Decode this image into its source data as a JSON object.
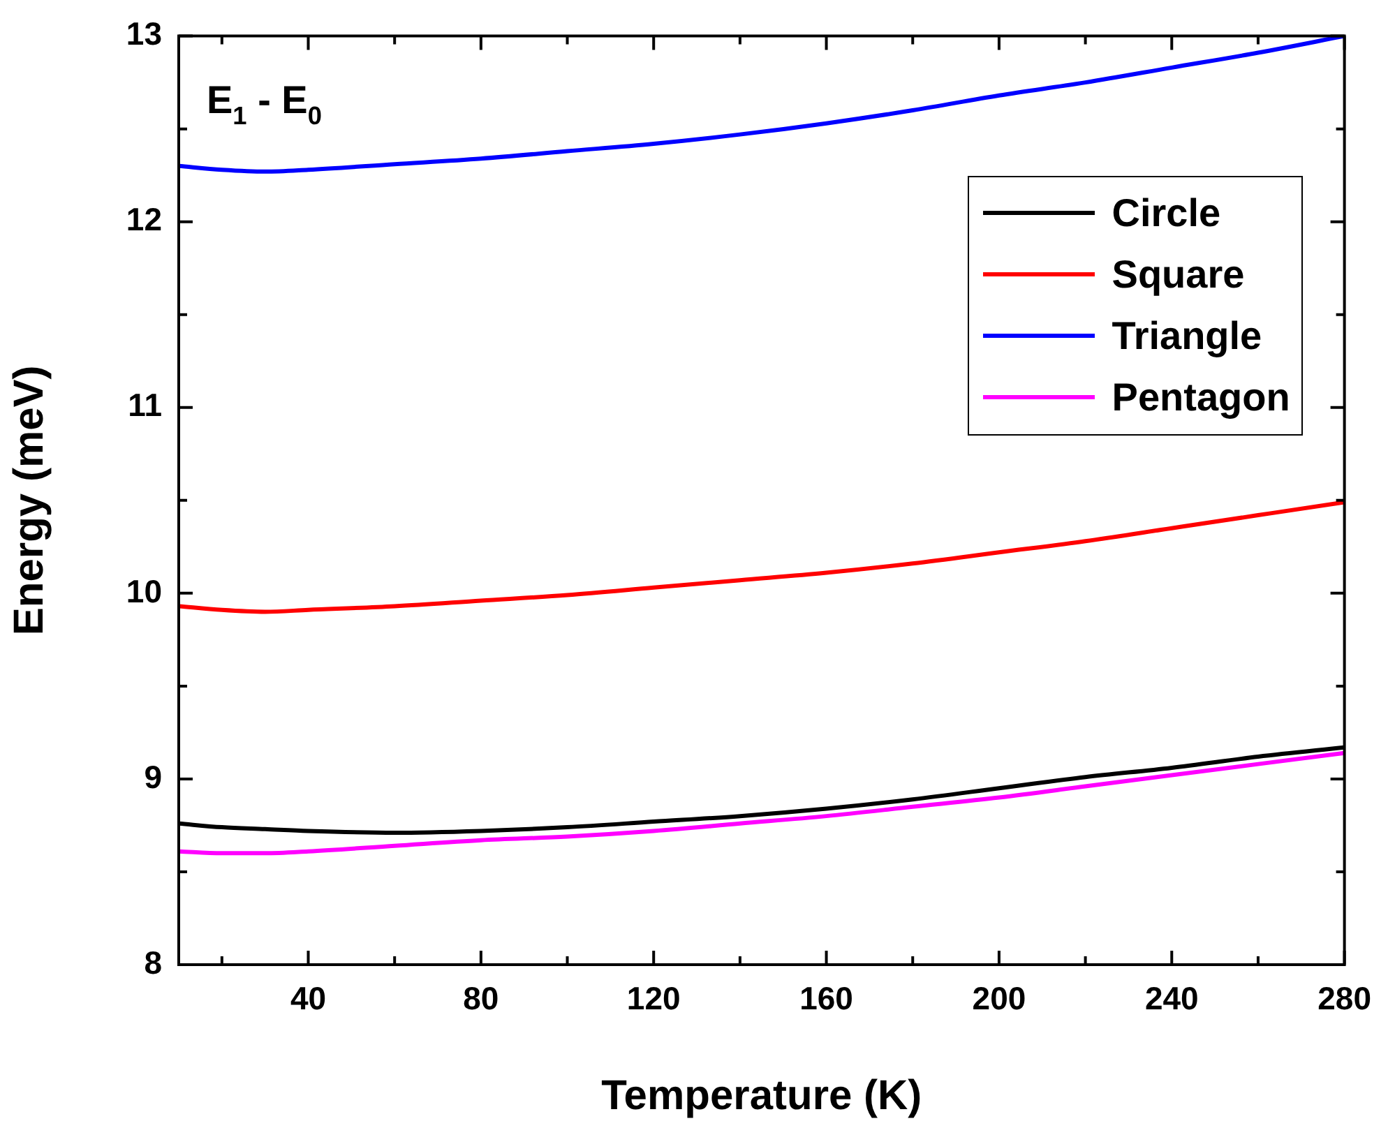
{
  "chart_data": {
    "type": "line",
    "xlabel": "Temperature (K)",
    "ylabel": "Energy (meV)",
    "annotations": [
      "E$_{1}$ - E$_{0}$"
    ],
    "x": [
      10,
      20,
      30,
      40,
      60,
      80,
      100,
      120,
      140,
      160,
      180,
      200,
      220,
      240,
      260,
      280
    ],
    "series": [
      {
        "name": "Circle",
        "color": "#000000",
        "values": [
          8.76,
          8.74,
          8.73,
          8.72,
          8.71,
          8.72,
          8.74,
          8.77,
          8.8,
          8.84,
          8.89,
          8.95,
          9.01,
          9.06,
          9.12,
          9.17
        ]
      },
      {
        "name": "Square",
        "color": "#ff0000",
        "values": [
          9.93,
          9.91,
          9.9,
          9.91,
          9.93,
          9.96,
          9.99,
          10.03,
          10.07,
          10.11,
          10.16,
          10.22,
          10.28,
          10.35,
          10.42,
          10.49
        ]
      },
      {
        "name": "Triangle",
        "color": "#0000ff",
        "values": [
          12.3,
          12.28,
          12.27,
          12.28,
          12.31,
          12.34,
          12.38,
          12.42,
          12.47,
          12.53,
          12.6,
          12.68,
          12.75,
          12.83,
          12.91,
          13.0
        ]
      },
      {
        "name": "Pentagon",
        "color": "#ff00ff",
        "values": [
          8.61,
          8.6,
          8.6,
          8.61,
          8.64,
          8.67,
          8.69,
          8.72,
          8.76,
          8.8,
          8.85,
          8.9,
          8.96,
          9.02,
          9.08,
          9.14
        ]
      }
    ],
    "xlim": [
      10,
      280
    ],
    "xticks": [
      40,
      80,
      120,
      160,
      200,
      240,
      280
    ],
    "ylim": [
      8,
      13
    ],
    "yticks": [
      8,
      9,
      10,
      11,
      12,
      13
    ],
    "legend": "top right",
    "marker": "none",
    "line_style": "solid",
    "grid": false
  }
}
